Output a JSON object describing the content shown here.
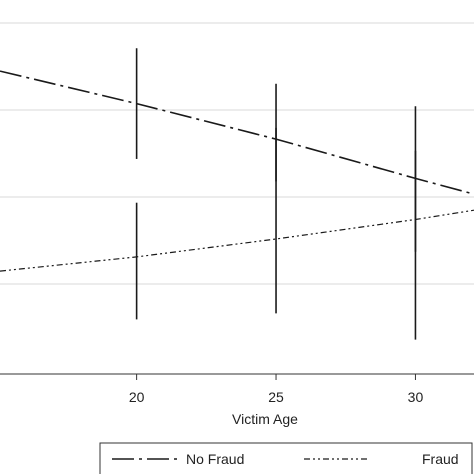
{
  "chart_data": {
    "type": "line",
    "title": "",
    "xlabel": "Victim Age",
    "ylabel": "",
    "xlim": [
      15.1,
      32.1
    ],
    "ylim": [
      0,
      1
    ],
    "x_ticks": [
      20,
      25,
      30
    ],
    "grid": "horizontal",
    "legend_position": "bottom",
    "colors": {
      "line": "#1a1a1a",
      "grid": "#d9d9d9",
      "axis": "#333333"
    },
    "series": [
      {
        "name": "No Fraud",
        "style": "long-dash-dot",
        "x": [
          15.1,
          20,
          25,
          30,
          32.1
        ],
        "y": [
          0.81,
          0.723,
          0.628,
          0.523,
          0.481
        ],
        "ci": [
          {
            "x": 20,
            "low": 0.575,
            "high": 0.871
          },
          {
            "x": 25,
            "low": 0.515,
            "high": 0.776
          },
          {
            "x": 30,
            "low": 0.327,
            "high": 0.716
          }
        ]
      },
      {
        "name": "Fraud",
        "style": "short-dash-dot-dot",
        "x": [
          15.1,
          20,
          25,
          30,
          32.1
        ],
        "y": [
          0.275,
          0.313,
          0.361,
          0.413,
          0.438
        ],
        "ci": [
          {
            "x": 20,
            "low": 0.146,
            "high": 0.458
          },
          {
            "x": 25,
            "low": 0.162,
            "high": 0.658
          },
          {
            "x": 30,
            "low": 0.092,
            "high": 0.597
          }
        ]
      }
    ]
  }
}
